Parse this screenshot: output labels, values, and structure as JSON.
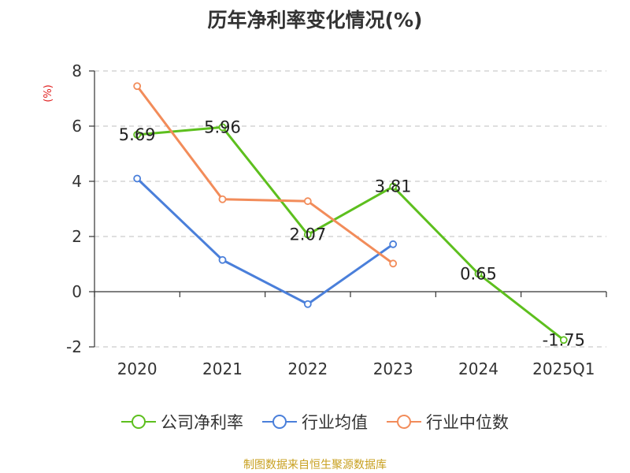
{
  "chart_data": {
    "type": "line",
    "title": "历年净利率变化情况(%)",
    "ylabel": "(%)",
    "categories": [
      "2020",
      "2021",
      "2022",
      "2023",
      "2024",
      "2025Q1"
    ],
    "yticks": [
      "8",
      "6",
      "4",
      "2",
      "0",
      "-2"
    ],
    "ylim": [
      -2,
      8
    ],
    "grid": true,
    "legend_position": "bottom",
    "series": [
      {
        "name": "公司净利率",
        "color": "#5dbf1e",
        "values": [
          5.69,
          5.96,
          2.07,
          3.81,
          0.65,
          -1.75
        ],
        "labels": [
          "5.69",
          "5.96",
          "2.07",
          "3.81",
          "0.65",
          "-1.75"
        ]
      },
      {
        "name": "行业均值",
        "color": "#4a7fda",
        "values": [
          4.1,
          1.15,
          -0.45,
          1.72,
          null,
          null
        ]
      },
      {
        "name": "行业中位数",
        "color": "#f28c5a",
        "values": [
          7.45,
          3.35,
          3.28,
          1.02,
          null,
          null
        ]
      }
    ]
  },
  "source": "制图数据来自恒生聚源数据库"
}
